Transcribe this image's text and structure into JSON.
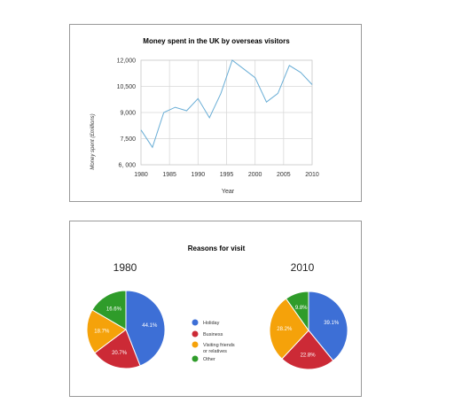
{
  "chart_data": [
    {
      "type": "line",
      "title": "Money spent in the UK by overseas visitors",
      "xlabel": "Year",
      "ylabel": "Money spent (£millions)",
      "ylim": [
        6000,
        12000
      ],
      "xlim": [
        1980,
        2010
      ],
      "ytick_labels": [
        "12,000",
        "10,500",
        "9,000",
        "7,500",
        "6, 000"
      ],
      "yticks": [
        12000,
        10500,
        9000,
        7500,
        6000
      ],
      "xticks": [
        1980,
        1985,
        1990,
        1995,
        2000,
        2005,
        2010
      ],
      "grid": true,
      "series": [
        {
          "color": "#6aaed6",
          "x": [
            1980,
            1982,
            1984,
            1986,
            1988,
            1990,
            1992,
            1994,
            1996,
            1998,
            2000,
            2002,
            2004,
            2006,
            2008,
            2010
          ],
          "y": [
            8000,
            7000,
            9000,
            9300,
            9100,
            9800,
            8700,
            10100,
            12000,
            11500,
            11000,
            9600,
            10100,
            11700,
            11300,
            10600
          ]
        }
      ]
    },
    {
      "type": "pie",
      "title": "Reasons for visit",
      "charts": [
        {
          "year": "1980",
          "slices": [
            {
              "label": "Holiday",
              "value": 44.1,
              "text": "44.1%",
              "color": "#3d6fd6"
            },
            {
              "label": "Business",
              "value": 20.7,
              "text": "20.7%",
              "color": "#cc2a36"
            },
            {
              "label": "Visiting friends or relatives",
              "value": 18.7,
              "text": "18.7%",
              "color": "#f5a20a"
            },
            {
              "label": "Other",
              "value": 16.6,
              "text": "16.6%",
              "color": "#2f9c2a"
            }
          ]
        },
        {
          "year": "2010",
          "slices": [
            {
              "label": "Holiday",
              "value": 39.1,
              "text": "39.1%",
              "color": "#3d6fd6"
            },
            {
              "label": "Business",
              "value": 22.8,
              "text": "22.8%",
              "color": "#cc2a36"
            },
            {
              "label": "Visiting friends or relatives",
              "value": 28.2,
              "text": "28.2%",
              "color": "#f5a20a"
            },
            {
              "label": "Other",
              "value": 9.8,
              "text": "9.8%",
              "color": "#2f9c2a"
            }
          ]
        }
      ],
      "legend": [
        {
          "line1": "Holiday",
          "line2": "",
          "color": "#3d6fd6"
        },
        {
          "line1": "Business",
          "line2": "",
          "color": "#cc2a36"
        },
        {
          "line1": "Visiting friends",
          "line2": "or relatives",
          "color": "#f5a20a"
        },
        {
          "line1": "Other",
          "line2": "",
          "color": "#2f9c2a"
        }
      ]
    }
  ]
}
